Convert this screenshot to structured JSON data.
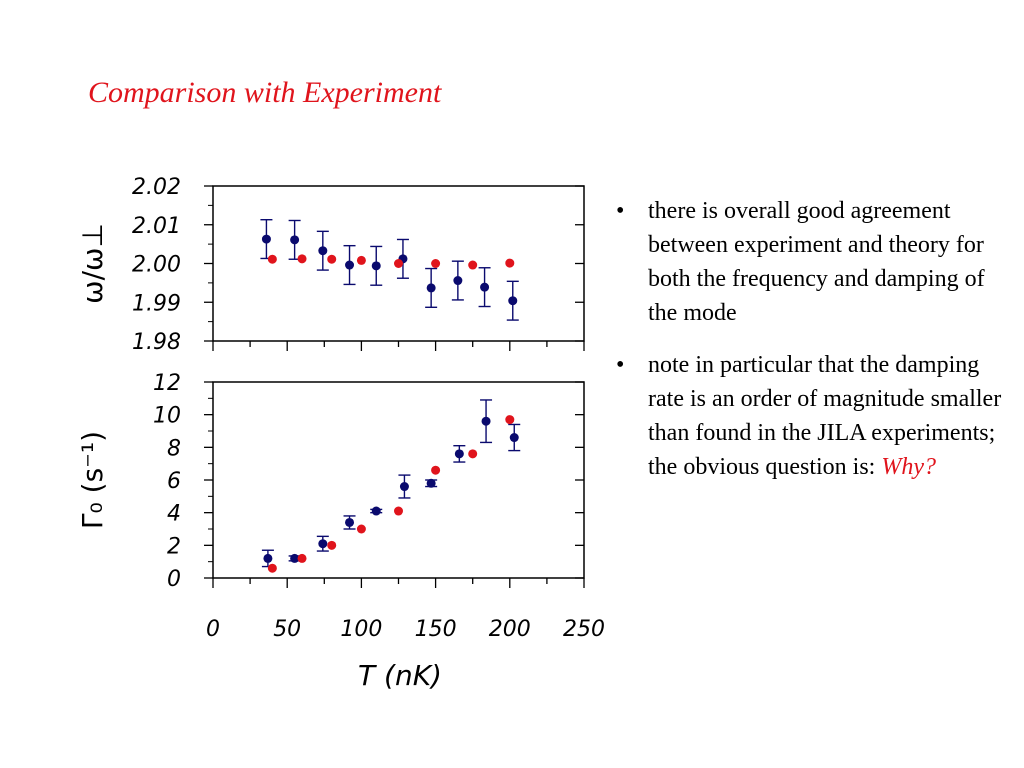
{
  "slide": {
    "title": "Comparison with Experiment",
    "bullets": [
      {
        "text": "there is overall good agreement between experiment and theory for both the frequency and damping of the mode"
      },
      {
        "text": "note in particular that the damping rate is an order of magnitude smaller than found in the JILA experiments; the obvious question is: ",
        "highlight": "Why?"
      }
    ],
    "bullet_glyph": "•"
  },
  "colors": {
    "title": "#e0141c",
    "experiment": "#0a0a6e",
    "theory": "#e0141c"
  },
  "chart_data": [
    {
      "type": "scatter",
      "ylabel": "ω/ω⊥",
      "xlim": [
        0,
        250
      ],
      "ylim": [
        1.98,
        2.02
      ],
      "yticks": [
        "2.02",
        "2.01",
        "2.00",
        "1.99",
        "1.98"
      ],
      "series": [
        {
          "kind": "experiment",
          "x": [
            36,
            55,
            74,
            92,
            110,
            128,
            147,
            165,
            183,
            202
          ],
          "y": [
            2.0063,
            2.0061,
            2.0033,
            1.9996,
            1.9994,
            2.0012,
            1.9937,
            1.9956,
            1.9939,
            1.9904
          ],
          "err": [
            0.005,
            0.005,
            0.005,
            0.005,
            0.005,
            0.005,
            0.005,
            0.005,
            0.005,
            0.005
          ]
        },
        {
          "kind": "theory",
          "x": [
            40,
            60,
            80,
            100,
            125,
            150,
            175,
            200
          ],
          "y": [
            2.0011,
            2.0012,
            2.0011,
            2.0008,
            2.0,
            2.0,
            1.9996,
            2.0001
          ]
        }
      ]
    },
    {
      "type": "scatter",
      "ylabel": "Γ₀ (s⁻¹)",
      "xlabel": "T (nK)",
      "xlim": [
        0,
        250
      ],
      "ylim": [
        0,
        12
      ],
      "xticks": [
        "0",
        "50",
        "100",
        "150",
        "200",
        "250"
      ],
      "yticks": [
        "12",
        "10",
        "8",
        "6",
        "4",
        "2",
        "0"
      ],
      "series": [
        {
          "kind": "experiment",
          "x": [
            37,
            55,
            74,
            92,
            110,
            129,
            147,
            166,
            184,
            203
          ],
          "y": [
            1.2,
            1.2,
            2.1,
            3.4,
            4.1,
            5.6,
            5.8,
            7.6,
            9.6,
            8.6
          ],
          "err": [
            0.5,
            0.15,
            0.45,
            0.4,
            0.1,
            0.7,
            0.2,
            0.5,
            1.3,
            0.8
          ]
        },
        {
          "kind": "theory",
          "x": [
            40,
            60,
            80,
            100,
            125,
            150,
            175,
            200
          ],
          "y": [
            0.6,
            1.2,
            2.0,
            3.0,
            4.1,
            6.6,
            7.6,
            9.7
          ]
        }
      ]
    }
  ]
}
